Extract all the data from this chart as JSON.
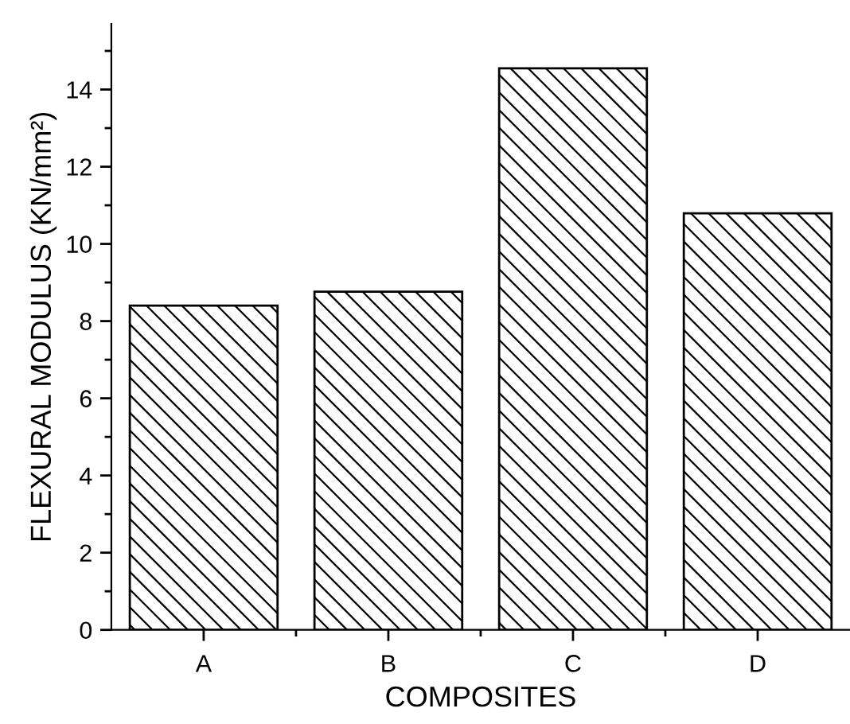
{
  "chart_data": {
    "type": "bar",
    "xlabel": "COMPOSITES",
    "ylabel": "FLEXURAL MODULUS (KN/mm²)",
    "categories": [
      "A",
      "B",
      "C",
      "D"
    ],
    "values": [
      8.4,
      8.76,
      14.55,
      10.79
    ],
    "color": "#000000",
    "ylim": [
      0,
      15.7
    ],
    "yticks": [
      0,
      2,
      4,
      6,
      8,
      10,
      12,
      14
    ],
    "grid": false,
    "legend": false
  }
}
